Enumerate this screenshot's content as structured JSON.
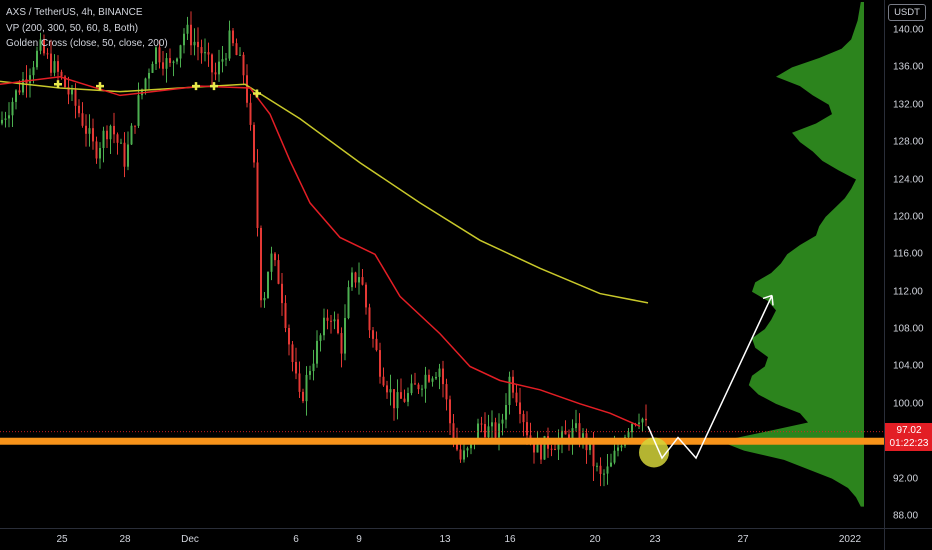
{
  "legend": {
    "symbol": "AXS / TetherUS, 4h, BINANCE",
    "vp": "VP (200, 300, 50, 60, 8, Both)",
    "golden_cross": "Golden Cross (close, 50, close, 200)"
  },
  "price_axis": {
    "currency": "USDT",
    "ticks": [
      "140.00",
      "136.00",
      "132.00",
      "128.00",
      "124.00",
      "120.00",
      "116.00",
      "112.00",
      "108.00",
      "104.00",
      "100.00",
      "96.00",
      "92.00",
      "88.00"
    ],
    "tick_values": [
      140,
      136,
      132,
      128,
      124,
      120,
      116,
      112,
      108,
      104,
      100,
      96,
      92,
      88
    ],
    "current_price": "97.02",
    "countdown": "01:22:23"
  },
  "time_axis": {
    "labels": [
      "25",
      "28",
      "Dec",
      "6",
      "9",
      "13",
      "16",
      "20",
      "23",
      "27",
      "2022"
    ]
  },
  "colors": {
    "up": "#26a69a",
    "candle_up": "#4caf50",
    "candle_down": "#e53935",
    "ma_fast": "#e31e25",
    "ma_slow": "#c8c82a",
    "support": "#f7931a",
    "volume_profile": "#2e8b1f",
    "cross_marker": "#e8e84a",
    "target_circle": "#d4d43a"
  },
  "chart_data": {
    "type": "candlestick",
    "title": "AXS / TetherUS, 4h, BINANCE",
    "y_range": [
      86.0,
      143.0
    ],
    "support_level": 96.0,
    "projection_path": [
      [
        96.0,
        "now"
      ],
      [
        94.0,
        "+1"
      ],
      [
        96.5,
        "+2"
      ],
      [
        94.5,
        "+3"
      ],
      [
        111.8,
        "target"
      ]
    ],
    "ma_slow_points": [
      [
        0,
        134.5
      ],
      [
        60,
        133.8
      ],
      [
        120,
        133.4
      ],
      [
        180,
        133.8
      ],
      [
        245,
        134.2
      ],
      [
        300,
        130.5
      ],
      [
        360,
        125.8
      ],
      [
        420,
        121.5
      ],
      [
        480,
        117.5
      ],
      [
        540,
        114.5
      ],
      [
        600,
        111.8
      ],
      [
        648,
        110.8
      ]
    ],
    "ma_fast_points": [
      [
        0,
        134.2
      ],
      [
        60,
        135.0
      ],
      [
        120,
        133.0
      ],
      [
        200,
        134.0
      ],
      [
        250,
        133.8
      ],
      [
        270,
        131
      ],
      [
        290,
        126
      ],
      [
        310,
        121.5
      ],
      [
        340,
        117.8
      ],
      [
        375,
        116.0
      ],
      [
        400,
        111.5
      ],
      [
        440,
        107.5
      ],
      [
        470,
        104.0
      ],
      [
        500,
        102.5
      ],
      [
        540,
        101.5
      ],
      [
        580,
        100.0
      ],
      [
        610,
        99.0
      ],
      [
        640,
        97.6
      ]
    ]
  }
}
